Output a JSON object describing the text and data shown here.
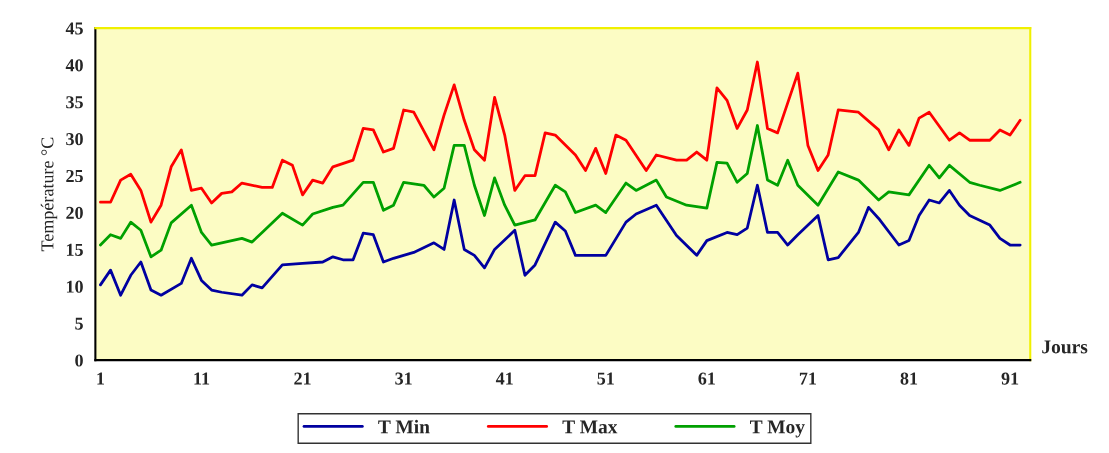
{
  "chart_data": {
    "type": "line",
    "xlabel": "Jours",
    "ylabel": "Température °C",
    "xlim": [
      0.5,
      93
    ],
    "ylim": [
      0,
      45
    ],
    "xticks": [
      1,
      11,
      21,
      31,
      41,
      51,
      61,
      71,
      81,
      91
    ],
    "yticks": [
      0,
      5,
      10,
      15,
      20,
      25,
      30,
      35,
      40,
      45
    ],
    "grid": false,
    "legend": "bottom",
    "series": [
      {
        "name": "T Min",
        "color": "#0000a0",
        "x": [
          1,
          2,
          3,
          4,
          5,
          6,
          7,
          9,
          10,
          11,
          12,
          13,
          15,
          16,
          17,
          19,
          21,
          23,
          24,
          25,
          26,
          27,
          28,
          29,
          30,
          32,
          34,
          35,
          36,
          37,
          38,
          39,
          40,
          42,
          43,
          44,
          46,
          47,
          48,
          50,
          51,
          53,
          54,
          56,
          58,
          60,
          61,
          63,
          64,
          65,
          66,
          67,
          68,
          69,
          70,
          72,
          73,
          74,
          76,
          77,
          78,
          80,
          81,
          82,
          83,
          84,
          85,
          86,
          87,
          89,
          90,
          91,
          92
        ],
        "values": [
          10.2,
          12.2,
          8.8,
          11.5,
          13.3,
          9.5,
          8.8,
          10.4,
          13.8,
          10.8,
          9.5,
          9.2,
          8.8,
          10.2,
          9.8,
          12.9,
          13.1,
          13.3,
          14,
          13.6,
          13.6,
          17.2,
          17,
          13.3,
          13.8,
          14.6,
          15.9,
          15,
          21.7,
          15,
          14.2,
          12.5,
          15,
          17.6,
          11.5,
          12.9,
          18.7,
          17.5,
          14.2,
          14.2,
          14.2,
          18.7,
          19.8,
          21,
          16.9,
          14.2,
          16.2,
          17.3,
          17,
          17.9,
          23.7,
          17.3,
          17.3,
          15.6,
          17,
          19.6,
          13.6,
          13.9,
          17.3,
          20.7,
          19.2,
          15.6,
          16.2,
          19.6,
          21.7,
          21.3,
          23,
          21,
          19.6,
          18.3,
          16.5,
          15.6,
          15.6
        ]
      },
      {
        "name": "T Max",
        "color": "#ff0000",
        "x": [
          1,
          2,
          3,
          4,
          5,
          6,
          7,
          8,
          9,
          10,
          11,
          12,
          13,
          14,
          15,
          17,
          18,
          19,
          20,
          21,
          22,
          23,
          24,
          26,
          27,
          28,
          29,
          30,
          31,
          32,
          34,
          35,
          36,
          37,
          38,
          39,
          40,
          41,
          42,
          43,
          44,
          45,
          46,
          48,
          49,
          50,
          51,
          52,
          53,
          55,
          56,
          58,
          59,
          60,
          61,
          62,
          63,
          64,
          65,
          66,
          67,
          68,
          70,
          71,
          72,
          73,
          74,
          76,
          78,
          79,
          80,
          81,
          82,
          83,
          85,
          86,
          87,
          89,
          90,
          91,
          92
        ],
        "values": [
          21.4,
          21.4,
          24.4,
          25.2,
          23,
          18.7,
          21,
          26.2,
          28.5,
          23,
          23.3,
          21.3,
          22.6,
          22.8,
          24,
          23.4,
          23.4,
          27.1,
          26.4,
          22.4,
          24.4,
          24,
          26.2,
          27.1,
          31.4,
          31.2,
          28.2,
          28.7,
          33.9,
          33.6,
          28.5,
          33.2,
          37.3,
          32.5,
          28.5,
          27.1,
          35.6,
          30.5,
          23,
          25,
          25,
          30.8,
          30.5,
          27.8,
          25.7,
          28.7,
          25.3,
          30.5,
          29.8,
          25.7,
          27.8,
          27.1,
          27.1,
          28.2,
          27.1,
          36.9,
          35.2,
          31.4,
          33.9,
          40.4,
          31.4,
          30.8,
          38.9,
          29.1,
          25.7,
          27.8,
          33.9,
          33.6,
          31.2,
          28.5,
          31.2,
          29.1,
          32.8,
          33.6,
          29.8,
          30.8,
          29.8,
          29.8,
          31.2,
          30.5,
          32.5
        ]
      },
      {
        "name": "T Moy",
        "color": "#00a000",
        "x": [
          1,
          2,
          3,
          4,
          5,
          6,
          7,
          8,
          10,
          11,
          12,
          13,
          15,
          16,
          17,
          19,
          21,
          22,
          24,
          25,
          27,
          28,
          29,
          30,
          31,
          33,
          34,
          35,
          36,
          37,
          38,
          39,
          40,
          41,
          42,
          44,
          46,
          47,
          48,
          50,
          51,
          53,
          54,
          56,
          57,
          59,
          61,
          62,
          63,
          64,
          65,
          66,
          67,
          68,
          69,
          70,
          72,
          74,
          76,
          78,
          79,
          81,
          83,
          84,
          85,
          87,
          88,
          90,
          92
        ],
        "values": [
          15.6,
          17,
          16.5,
          18.7,
          17.6,
          14,
          14.9,
          18.6,
          21,
          17.3,
          15.6,
          15.9,
          16.5,
          16,
          17.3,
          19.9,
          18.3,
          19.8,
          20.7,
          21,
          24.1,
          24.1,
          20.3,
          21,
          24.1,
          23.7,
          22.1,
          23.3,
          29.1,
          29.1,
          23.7,
          19.6,
          24.7,
          21,
          18.3,
          19,
          23.7,
          22.8,
          20,
          21,
          20,
          24,
          23,
          24.4,
          22.1,
          21,
          20.6,
          26.8,
          26.7,
          24.1,
          25.3,
          31.8,
          24.4,
          23.7,
          27.1,
          23.7,
          21,
          25.5,
          24.4,
          21.7,
          22.8,
          22.4,
          26.4,
          24.7,
          26.4,
          24.1,
          23.7,
          23,
          24.1
        ]
      }
    ]
  }
}
